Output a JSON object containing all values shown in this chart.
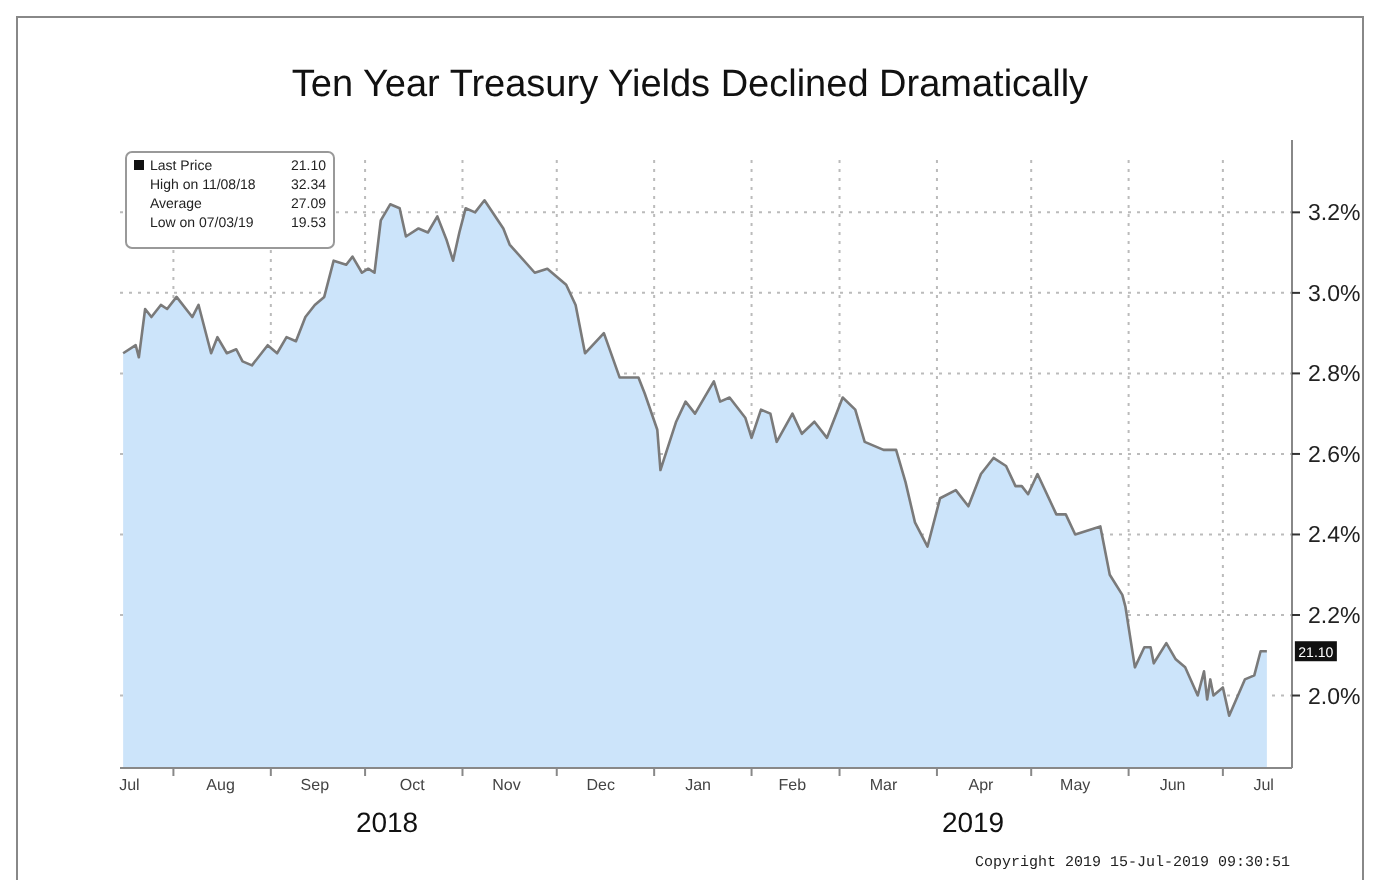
{
  "chart_data": {
    "type": "area",
    "title": "Ten Year Treasury Yields Declined Dramatically",
    "xlim": [
      "2018-07-15",
      "2019-07-23"
    ],
    "xticks": [
      {
        "value": "2018-07-18",
        "label": "Jul"
      },
      {
        "value": "2018-08-01",
        "label": null
      },
      {
        "value": "2018-08-16",
        "label": "Aug"
      },
      {
        "value": "2018-09-01",
        "label": null
      },
      {
        "value": "2018-09-15",
        "label": "Sep"
      },
      {
        "value": "2018-10-01",
        "label": null
      },
      {
        "value": "2018-10-16",
        "label": "Oct"
      },
      {
        "value": "2018-11-01",
        "label": null
      },
      {
        "value": "2018-11-15",
        "label": "Nov"
      },
      {
        "value": "2018-12-01",
        "label": null
      },
      {
        "value": "2018-12-15",
        "label": "Dec"
      },
      {
        "value": "2019-01-01",
        "label": null
      },
      {
        "value": "2019-01-15",
        "label": "Jan"
      },
      {
        "value": "2019-02-01",
        "label": null
      },
      {
        "value": "2019-02-14",
        "label": "Feb"
      },
      {
        "value": "2019-03-01",
        "label": null
      },
      {
        "value": "2019-03-15",
        "label": "Mar"
      },
      {
        "value": "2019-04-01",
        "label": null
      },
      {
        "value": "2019-04-15",
        "label": "Apr"
      },
      {
        "value": "2019-05-01",
        "label": null
      },
      {
        "value": "2019-05-15",
        "label": "May"
      },
      {
        "value": "2019-06-01",
        "label": null
      },
      {
        "value": "2019-06-15",
        "label": "Jun"
      },
      {
        "value": "2019-07-01",
        "label": null
      },
      {
        "value": "2019-07-14",
        "label": "Jul"
      }
    ],
    "ylim": [
      1.82,
      3.33
    ],
    "yticks": [
      {
        "value": 2.0,
        "label": "2.0%"
      },
      {
        "value": 2.2,
        "label": "2.2%"
      },
      {
        "value": 2.4,
        "label": "2.4%"
      },
      {
        "value": 2.6,
        "label": "2.6%"
      },
      {
        "value": 2.8,
        "label": "2.8%"
      },
      {
        "value": 3.0,
        "label": "3.0%"
      },
      {
        "value": 3.2,
        "label": "3.2%"
      }
    ],
    "grid": true,
    "x": [
      "2018-07-16",
      "2018-07-20",
      "2018-07-21",
      "2018-07-23",
      "2018-07-25",
      "2018-07-28",
      "2018-07-30",
      "2018-08-02",
      "2018-08-07",
      "2018-08-09",
      "2018-08-13",
      "2018-08-15",
      "2018-08-18",
      "2018-08-21",
      "2018-08-23",
      "2018-08-26",
      "2018-08-31",
      "2018-09-03",
      "2018-09-06",
      "2018-09-09",
      "2018-09-12",
      "2018-09-15",
      "2018-09-18",
      "2018-09-21",
      "2018-09-25",
      "2018-09-27",
      "2018-09-30",
      "2018-10-02",
      "2018-10-04",
      "2018-10-06",
      "2018-10-09",
      "2018-10-12",
      "2018-10-14",
      "2018-10-18",
      "2018-10-21",
      "2018-10-24",
      "2018-10-27",
      "2018-10-29",
      "2018-10-31",
      "2018-11-02",
      "2018-11-05",
      "2018-11-08",
      "2018-11-14",
      "2018-11-16",
      "2018-11-24",
      "2018-11-28",
      "2018-12-04",
      "2018-12-07",
      "2018-12-10",
      "2018-12-16",
      "2018-12-21",
      "2018-12-27",
      "2018-12-29",
      "2019-01-02",
      "2019-01-03",
      "2019-01-08",
      "2019-01-11",
      "2019-01-14",
      "2019-01-20",
      "2019-01-22",
      "2019-01-25",
      "2019-01-30",
      "2019-02-01",
      "2019-02-04",
      "2019-02-07",
      "2019-02-09",
      "2019-02-14",
      "2019-02-17",
      "2019-02-21",
      "2019-02-25",
      "2019-03-02",
      "2019-03-06",
      "2019-03-09",
      "2019-03-12",
      "2019-03-15",
      "2019-03-19",
      "2019-03-22",
      "2019-03-25",
      "2019-03-29",
      "2019-04-02",
      "2019-04-07",
      "2019-04-11",
      "2019-04-15",
      "2019-04-19",
      "2019-04-23",
      "2019-04-26",
      "2019-04-28",
      "2019-04-30",
      "2019-05-03",
      "2019-05-09",
      "2019-05-12",
      "2019-05-15",
      "2019-05-19",
      "2019-05-23",
      "2019-05-26",
      "2019-05-30",
      "2019-05-31",
      "2019-06-03",
      "2019-06-06",
      "2019-06-08",
      "2019-06-09",
      "2019-06-13",
      "2019-06-16",
      "2019-06-19",
      "2019-06-23",
      "2019-06-25",
      "2019-06-26",
      "2019-06-27",
      "2019-06-28",
      "2019-07-01",
      "2019-07-03",
      "2019-07-08",
      "2019-07-11",
      "2019-07-13",
      "2019-07-15"
    ],
    "series": [
      {
        "color": "#cce4fa",
        "values": [
          2.85,
          2.87,
          2.84,
          2.96,
          2.94,
          2.97,
          2.96,
          2.99,
          2.94,
          2.97,
          2.85,
          2.89,
          2.85,
          2.86,
          2.83,
          2.82,
          2.87,
          2.85,
          2.89,
          2.88,
          2.94,
          2.97,
          2.99,
          3.08,
          3.07,
          3.09,
          3.05,
          3.06,
          3.05,
          3.18,
          3.22,
          3.21,
          3.14,
          3.16,
          3.15,
          3.19,
          3.13,
          3.08,
          3.15,
          3.21,
          3.2,
          3.23,
          3.16,
          3.12,
          3.05,
          3.06,
          3.02,
          2.97,
          2.85,
          2.9,
          2.79,
          2.79,
          2.75,
          2.66,
          2.56,
          2.68,
          2.73,
          2.7,
          2.78,
          2.73,
          2.74,
          2.69,
          2.64,
          2.71,
          2.7,
          2.63,
          2.7,
          2.65,
          2.68,
          2.64,
          2.74,
          2.71,
          2.63,
          2.62,
          2.61,
          2.61,
          2.53,
          2.43,
          2.37,
          2.49,
          2.51,
          2.47,
          2.55,
          2.59,
          2.57,
          2.52,
          2.52,
          2.5,
          2.55,
          2.45,
          2.45,
          2.4,
          2.41,
          2.42,
          2.3,
          2.25,
          2.22,
          2.07,
          2.12,
          2.12,
          2.08,
          2.13,
          2.09,
          2.07,
          2.0,
          2.06,
          1.99,
          2.04,
          2.0,
          2.02,
          1.95,
          2.04,
          2.05,
          2.11,
          2.11
        ]
      }
    ],
    "annotations": [
      "Last Price 21.10",
      "High on 11/08/18 32.34",
      "Average 27.09",
      "Low on 07/03/19 19.53",
      {
        "text": "21.10",
        "x": "2019-07-15",
        "y": 2.11
      },
      "2018",
      "2019",
      "Copyright 2019 15-Jul-2019 09:30:51"
    ]
  }
}
